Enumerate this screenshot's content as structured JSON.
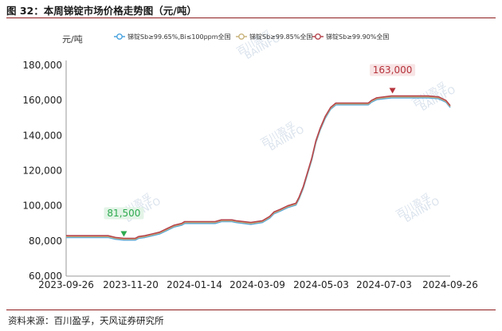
{
  "figure": {
    "title": "图 32：本周锑锭市场价格走势图（元/吨）",
    "source": "资料来源：百川盈孚，天风证券研究所"
  },
  "chart_data": {
    "type": "line",
    "ylabel": "元/吨",
    "ylim": [
      60000,
      180000
    ],
    "yticks": [
      60000,
      80000,
      100000,
      120000,
      140000,
      160000,
      180000
    ],
    "ytick_labels": [
      "60,000",
      "80,000",
      "100,000",
      "120,000",
      "140,000",
      "160,000",
      "180,000"
    ],
    "xlim": [
      "2023-09-26",
      "2024-09-26"
    ],
    "xtick_labels": [
      "2023-09-26",
      "2023-11-20",
      "2024-01-14",
      "2024-03-09",
      "2024-05-03",
      "2024-07-03",
      "2024-09-26"
    ],
    "grid": false,
    "legend_position": "top",
    "series": [
      {
        "name": "锑锭Sb≥99.65%,Bi≤100ppm全国",
        "color": "#4aa3df",
        "points": [
          [
            "2023-09-26",
            82000
          ],
          [
            "2023-11-05",
            82000
          ],
          [
            "2023-11-12",
            81000
          ],
          [
            "2023-11-20",
            80500
          ],
          [
            "2023-12-01",
            80500
          ],
          [
            "2023-12-04",
            81500
          ],
          [
            "2023-12-10",
            82000
          ],
          [
            "2023-12-17",
            83000
          ],
          [
            "2023-12-24",
            84000
          ],
          [
            "2023-12-31",
            86000
          ],
          [
            "2024-01-07",
            88000
          ],
          [
            "2024-01-14",
            89000
          ],
          [
            "2024-01-17",
            90000
          ],
          [
            "2024-02-15",
            90000
          ],
          [
            "2024-02-21",
            91000
          ],
          [
            "2024-03-02",
            91000
          ],
          [
            "2024-03-06",
            90500
          ],
          [
            "2024-03-20",
            89500
          ],
          [
            "2024-03-31",
            90500
          ],
          [
            "2024-04-07",
            93000
          ],
          [
            "2024-04-11",
            95500
          ],
          [
            "2024-04-17",
            97000
          ],
          [
            "2024-04-24",
            99000
          ],
          [
            "2024-05-02",
            100500
          ],
          [
            "2024-05-05",
            104000
          ],
          [
            "2024-05-09",
            110000
          ],
          [
            "2024-05-13",
            118000
          ],
          [
            "2024-05-17",
            126000
          ],
          [
            "2024-05-21",
            136000
          ],
          [
            "2024-05-25",
            143000
          ],
          [
            "2024-05-30",
            150000
          ],
          [
            "2024-06-04",
            155000
          ],
          [
            "2024-06-09",
            157500
          ],
          [
            "2024-06-15",
            157500
          ],
          [
            "2024-07-10",
            157500
          ],
          [
            "2024-07-13",
            159000
          ],
          [
            "2024-07-18",
            160500
          ],
          [
            "2024-08-01",
            161500
          ],
          [
            "2024-08-20",
            161500
          ],
          [
            "2024-09-05",
            161500
          ],
          [
            "2024-09-15",
            161000
          ],
          [
            "2024-09-22",
            159000
          ],
          [
            "2024-09-26",
            156000
          ]
        ]
      },
      {
        "name": "锑锭Sb≥99.85%全国",
        "color": "#c9b37b",
        "points": [
          [
            "2023-09-26",
            82500
          ],
          [
            "2023-11-05",
            82500
          ],
          [
            "2023-11-12",
            81500
          ],
          [
            "2023-11-20",
            81000
          ],
          [
            "2023-12-01",
            81000
          ],
          [
            "2023-12-04",
            82000
          ],
          [
            "2023-12-10",
            82500
          ],
          [
            "2023-12-17",
            83500
          ],
          [
            "2023-12-24",
            84500
          ],
          [
            "2023-12-31",
            86500
          ],
          [
            "2024-01-07",
            88500
          ],
          [
            "2024-01-14",
            89500
          ],
          [
            "2024-01-17",
            90500
          ],
          [
            "2024-02-15",
            90500
          ],
          [
            "2024-02-21",
            91500
          ],
          [
            "2024-03-02",
            91500
          ],
          [
            "2024-03-06",
            91000
          ],
          [
            "2024-03-20",
            90000
          ],
          [
            "2024-03-31",
            91000
          ],
          [
            "2024-04-07",
            93500
          ],
          [
            "2024-04-11",
            96000
          ],
          [
            "2024-04-17",
            97500
          ],
          [
            "2024-04-24",
            99500
          ],
          [
            "2024-05-02",
            101000
          ],
          [
            "2024-05-05",
            104500
          ],
          [
            "2024-05-09",
            110500
          ],
          [
            "2024-05-13",
            118500
          ],
          [
            "2024-05-17",
            126500
          ],
          [
            "2024-05-21",
            136500
          ],
          [
            "2024-05-25",
            143500
          ],
          [
            "2024-05-30",
            150500
          ],
          [
            "2024-06-04",
            155500
          ],
          [
            "2024-06-09",
            158000
          ],
          [
            "2024-06-15",
            158000
          ],
          [
            "2024-07-10",
            158000
          ],
          [
            "2024-07-13",
            159500
          ],
          [
            "2024-07-18",
            161000
          ],
          [
            "2024-08-01",
            162000
          ],
          [
            "2024-08-20",
            162000
          ],
          [
            "2024-09-05",
            162000
          ],
          [
            "2024-09-15",
            161500
          ],
          [
            "2024-09-22",
            159500
          ],
          [
            "2024-09-26",
            156500
          ]
        ]
      },
      {
        "name": "锑锭Sb≥99.90%全国",
        "color": "#b5454d",
        "points": [
          [
            "2023-09-26",
            83000
          ],
          [
            "2023-11-05",
            83000
          ],
          [
            "2023-11-12",
            82000
          ],
          [
            "2023-11-20",
            81500
          ],
          [
            "2023-12-01",
            81500
          ],
          [
            "2023-12-04",
            82500
          ],
          [
            "2023-12-10",
            83000
          ],
          [
            "2023-12-17",
            84000
          ],
          [
            "2023-12-24",
            85000
          ],
          [
            "2023-12-31",
            87000
          ],
          [
            "2024-01-07",
            89000
          ],
          [
            "2024-01-14",
            90000
          ],
          [
            "2024-01-17",
            91000
          ],
          [
            "2024-02-15",
            91000
          ],
          [
            "2024-02-21",
            92000
          ],
          [
            "2024-03-02",
            92000
          ],
          [
            "2024-03-06",
            91500
          ],
          [
            "2024-03-20",
            90500
          ],
          [
            "2024-03-31",
            91500
          ],
          [
            "2024-04-07",
            94000
          ],
          [
            "2024-04-11",
            96500
          ],
          [
            "2024-04-17",
            98000
          ],
          [
            "2024-04-24",
            100000
          ],
          [
            "2024-05-02",
            101500
          ],
          [
            "2024-05-05",
            105000
          ],
          [
            "2024-05-09",
            111000
          ],
          [
            "2024-05-13",
            119000
          ],
          [
            "2024-05-17",
            127000
          ],
          [
            "2024-05-21",
            137000
          ],
          [
            "2024-05-25",
            144000
          ],
          [
            "2024-05-30",
            151000
          ],
          [
            "2024-06-04",
            156000
          ],
          [
            "2024-06-09",
            158500
          ],
          [
            "2024-06-15",
            158500
          ],
          [
            "2024-07-10",
            158500
          ],
          [
            "2024-07-13",
            160000
          ],
          [
            "2024-07-18",
            161500
          ],
          [
            "2024-08-01",
            162500
          ],
          [
            "2024-08-20",
            162500
          ],
          [
            "2024-09-05",
            162500
          ],
          [
            "2024-09-15",
            162000
          ],
          [
            "2024-09-22",
            160000
          ],
          [
            "2024-09-26",
            157000
          ]
        ]
      }
    ],
    "annotations": [
      {
        "label": "81,500",
        "date": "2023-11-20",
        "value": 81500,
        "kind": "min",
        "color": "#2eaa4f",
        "bg": "#e3f4e7"
      },
      {
        "label": "163,000",
        "date": "2024-08-02",
        "value": 163000,
        "kind": "max",
        "color": "#b5323b",
        "bg": "#f8e4e5"
      }
    ],
    "watermark": [
      "百川盈孚",
      "BAIINFO"
    ]
  }
}
